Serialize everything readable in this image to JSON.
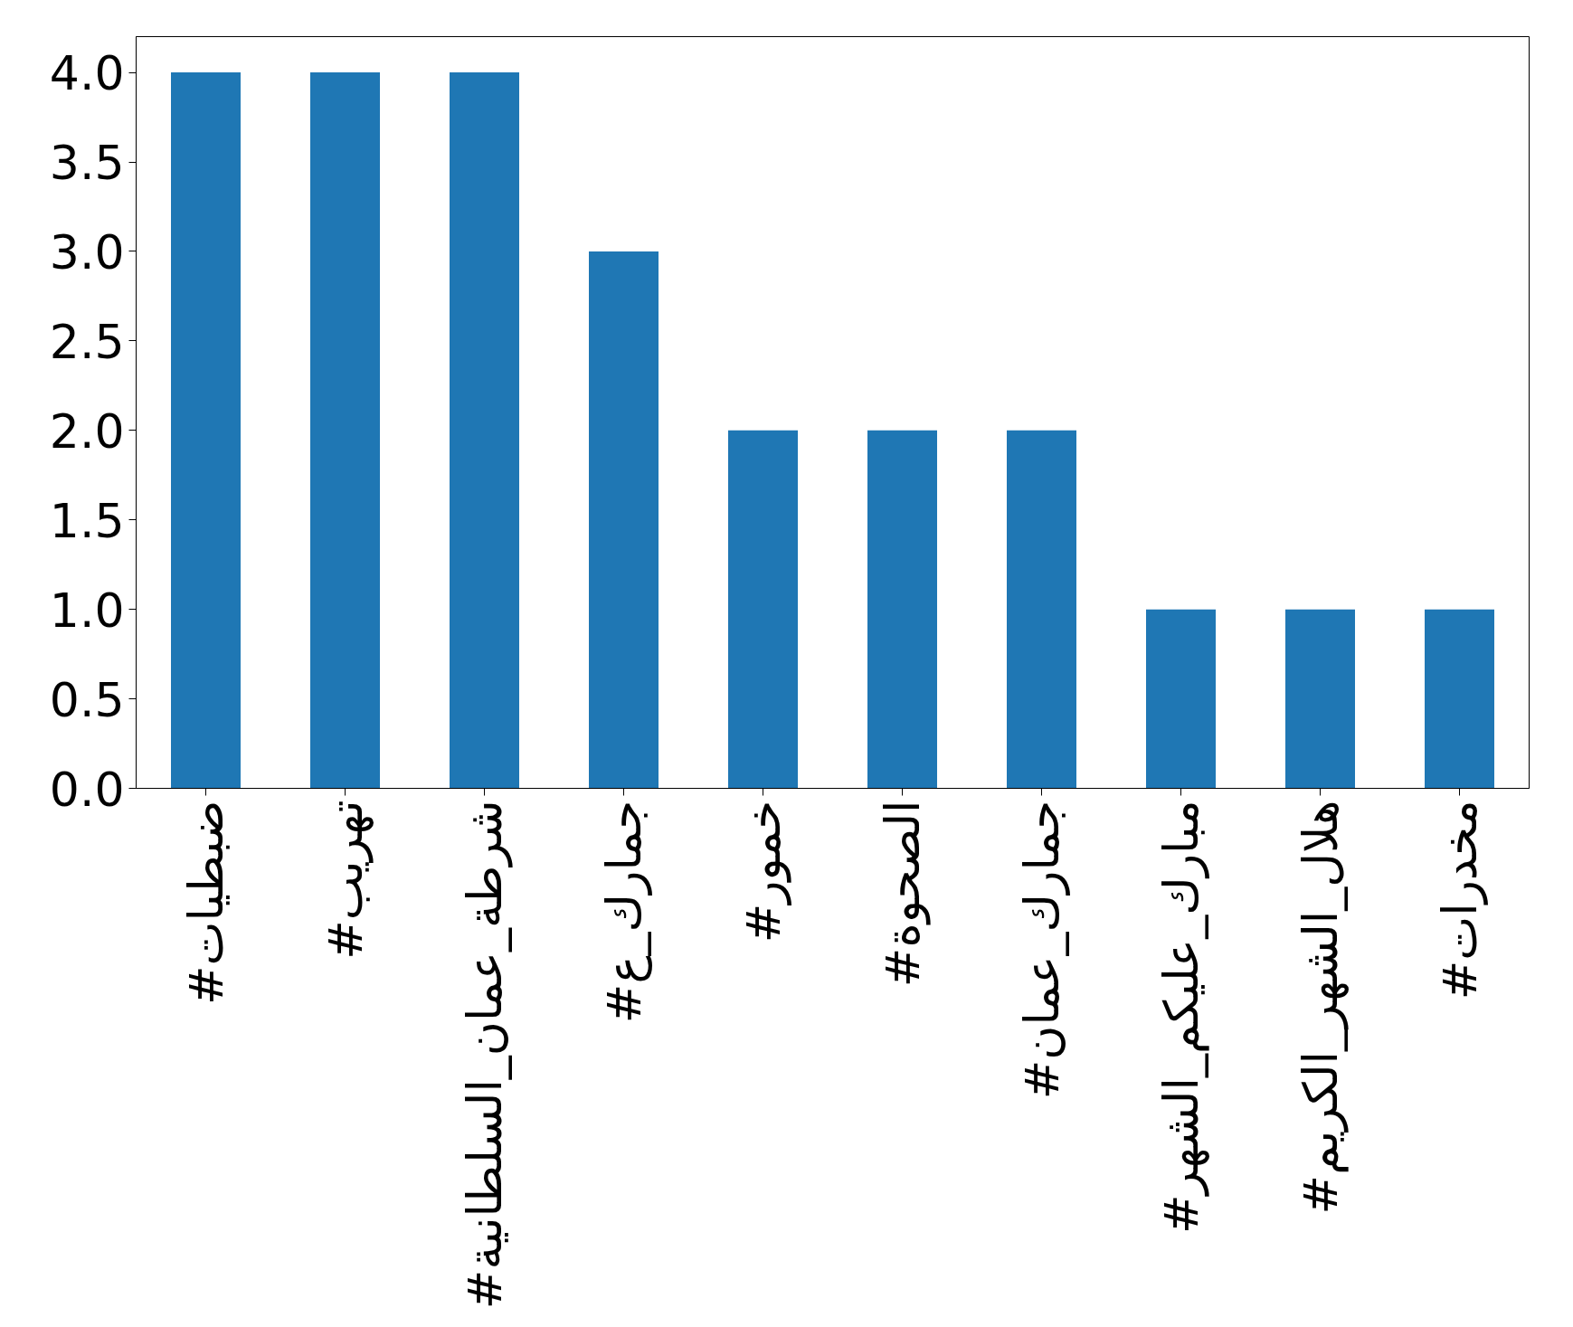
{
  "chart_data": {
    "type": "bar",
    "categories": [
      "#ضبطيات",
      "#تهريب",
      "#شرطة_عمان_السلطانية",
      "#جمارك_ع",
      "#خمور",
      "#الصحوة",
      "#جمارك_عمان",
      "#مبارك_عليكم_الشهر",
      "#هلال_الشهر_الكريم",
      "#مخدرات"
    ],
    "values": [
      4,
      4,
      4,
      3,
      2,
      2,
      2,
      1,
      1,
      1
    ],
    "color": "#1f77b4",
    "ylim": [
      0,
      4.2
    ],
    "yticks": [
      {
        "value": 0,
        "label": "0.0"
      },
      {
        "value": 0.5,
        "label": "0.5"
      },
      {
        "value": 1,
        "label": "1.0"
      },
      {
        "value": 1.5,
        "label": "1.5"
      },
      {
        "value": 2,
        "label": "2.0"
      },
      {
        "value": 2.5,
        "label": "2.5"
      },
      {
        "value": 3,
        "label": "3.0"
      },
      {
        "value": 3.5,
        "label": "3.5"
      },
      {
        "value": 4,
        "label": "4.0"
      }
    ],
    "grid": false
  }
}
